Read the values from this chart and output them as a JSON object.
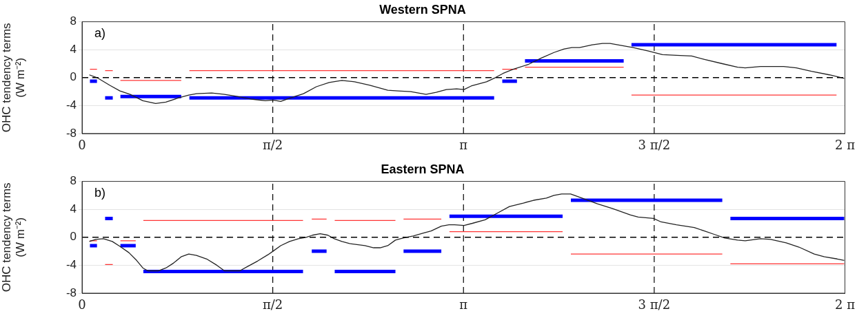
{
  "chart_data": [
    {
      "type": "line",
      "title": "Western SPNA",
      "ylabel": "OHC tendency terms (W m⁻²)",
      "annotations": [
        "a)"
      ],
      "xlim": [
        0,
        6.2832
      ],
      "xticks": [
        0,
        {
          "value": 1.5708,
          "label": "π/2"
        },
        {
          "value": 3.1416,
          "label": "π"
        },
        {
          "value": 4.7124,
          "label": "3 π/2"
        },
        {
          "value": 6.2832,
          "label": "2 π"
        }
      ],
      "ylim": [
        -8,
        8
      ],
      "yticks": [
        -8,
        -4,
        0,
        4,
        8
      ],
      "grid": "y",
      "legend": false,
      "marker": "none",
      "ref_lines": [
        {
          "axis": "x",
          "value": 1.5708,
          "color": "#000000",
          "line_style": "dashed"
        },
        {
          "axis": "x",
          "value": 3.1416,
          "color": "#000000",
          "line_style": "dashed"
        },
        {
          "axis": "x",
          "value": 4.7124,
          "color": "#000000",
          "line_style": "dashed"
        },
        {
          "axis": "y",
          "value": 0,
          "color": "#000000",
          "line_style": "dashed"
        }
      ],
      "series": [
        {
          "type": "line",
          "color": "#222222",
          "x": [
            0.06,
            0.123,
            0.229,
            0.312,
            0.396,
            0.501,
            0.606,
            0.69,
            0.796,
            0.88,
            0.943,
            1.068,
            1.173,
            1.278,
            1.405,
            1.51,
            1.573,
            1.636,
            1.719,
            1.824,
            1.93,
            2.035,
            2.14,
            2.245,
            2.37,
            2.518,
            2.602,
            2.707,
            2.833,
            2.917,
            3.001,
            3.085,
            3.146,
            3.205,
            3.331,
            3.404,
            3.467,
            3.551,
            3.677,
            3.782,
            3.887,
            3.971,
            4.034,
            4.097,
            4.202,
            4.286,
            4.349,
            4.412,
            4.539,
            4.664,
            4.78,
            4.895,
            5.021,
            5.127,
            5.273,
            5.399,
            5.462,
            5.588,
            5.673,
            5.778,
            5.883,
            6.008,
            6.155,
            6.277
          ],
          "values": [
            0.4,
            0.0,
            -1.1,
            -1.9,
            -2.4,
            -3.3,
            -3.7,
            -3.5,
            -2.9,
            -2.5,
            -2.3,
            -2.2,
            -2.4,
            -2.7,
            -3.1,
            -3.3,
            -3.2,
            -3.4,
            -2.9,
            -2.3,
            -1.3,
            -0.7,
            -0.4,
            -0.6,
            -1.1,
            -1.8,
            -1.9,
            -2.0,
            -2.4,
            -2.1,
            -1.7,
            -1.6,
            -1.7,
            -1.2,
            -0.6,
            0.0,
            0.6,
            1.2,
            1.9,
            2.8,
            3.6,
            4.1,
            4.3,
            4.3,
            4.7,
            4.9,
            4.9,
            4.7,
            4.3,
            3.8,
            3.3,
            3.2,
            3.1,
            2.6,
            2.0,
            1.5,
            1.4,
            1.6,
            1.6,
            1.6,
            1.4,
            0.9,
            0.4,
            -0.1
          ]
        },
        {
          "type": "line",
          "color": "#ff3333",
          "x": [
            0.065,
            0.123
          ],
          "values": [
            1.2,
            1.2
          ]
        },
        {
          "type": "line",
          "color": "#ff3333",
          "x": [
            0.19,
            0.253
          ],
          "values": [
            1.0,
            1.0
          ]
        },
        {
          "type": "line",
          "color": "#ff3333",
          "x": [
            0.316,
            0.817
          ],
          "values": [
            -0.4,
            -0.4
          ]
        },
        {
          "type": "line",
          "color": "#ff3333",
          "x": [
            0.884,
            3.394
          ],
          "values": [
            1.0,
            1.0
          ]
        },
        {
          "type": "line",
          "color": "#ff3333",
          "x": [
            3.461,
            3.582
          ],
          "values": [
            1.2,
            1.2
          ]
        },
        {
          "type": "line",
          "color": "#ff3333",
          "x": [
            3.648,
            4.461
          ],
          "values": [
            1.5,
            1.5
          ]
        },
        {
          "type": "line",
          "color": "#ff3333",
          "x": [
            4.525,
            6.214
          ],
          "values": [
            -2.5,
            -2.5
          ]
        },
        {
          "type": "line",
          "color": "#0000ff",
          "x": [
            0.065,
            0.123
          ],
          "values": [
            -0.5,
            -0.5
          ]
        },
        {
          "type": "line",
          "color": "#0000ff",
          "x": [
            0.19,
            0.253
          ],
          "values": [
            -2.9,
            -2.9
          ]
        },
        {
          "type": "line",
          "color": "#0000ff",
          "x": [
            0.316,
            0.817
          ],
          "values": [
            -2.7,
            -2.7
          ]
        },
        {
          "type": "line",
          "color": "#0000ff",
          "x": [
            0.884,
            3.394
          ],
          "values": [
            -2.9,
            -2.9
          ]
        },
        {
          "type": "line",
          "color": "#0000ff",
          "x": [
            3.461,
            3.582
          ],
          "values": [
            -0.5,
            -0.5
          ]
        },
        {
          "type": "line",
          "color": "#0000ff",
          "x": [
            3.648,
            4.461
          ],
          "values": [
            2.4,
            2.4
          ]
        },
        {
          "type": "line",
          "color": "#0000ff",
          "x": [
            4.525,
            6.214
          ],
          "values": [
            4.7,
            4.7
          ]
        }
      ]
    },
    {
      "type": "line",
      "title": "Eastern SPNA",
      "ylabel": "OHC tendency terms (W m⁻²)",
      "annotations": [
        "b)"
      ],
      "xlim": [
        0,
        6.2832
      ],
      "xticks": [
        0,
        {
          "value": 1.5708,
          "label": "π/2"
        },
        {
          "value": 3.1416,
          "label": "π"
        },
        {
          "value": 4.7124,
          "label": "3 π/2"
        },
        {
          "value": 6.2832,
          "label": "2 π"
        }
      ],
      "ylim": [
        -8,
        8
      ],
      "yticks": [
        -8,
        -4,
        0,
        4,
        8
      ],
      "grid": "y",
      "legend": false,
      "marker": "none",
      "ref_lines": [
        {
          "axis": "x",
          "value": 1.5708,
          "color": "#000000",
          "line_style": "dashed"
        },
        {
          "axis": "x",
          "value": 3.1416,
          "color": "#000000",
          "line_style": "dashed"
        },
        {
          "axis": "x",
          "value": 4.7124,
          "color": "#000000",
          "line_style": "dashed"
        },
        {
          "axis": "y",
          "value": 0,
          "color": "#000000",
          "line_style": "dashed"
        }
      ],
      "series": [
        {
          "type": "line",
          "color": "#222222",
          "x": [
            0.06,
            0.113,
            0.176,
            0.249,
            0.312,
            0.386,
            0.449,
            0.501,
            0.543,
            0.627,
            0.69,
            0.753,
            0.816,
            0.879,
            0.942,
            1.026,
            1.11,
            1.173,
            1.299,
            1.362,
            1.446,
            1.531,
            1.572,
            1.636,
            1.709,
            1.783,
            1.846,
            1.898,
            1.961,
            2.024,
            2.077,
            2.14,
            2.203,
            2.329,
            2.402,
            2.455,
            2.518,
            2.581,
            2.644,
            2.728,
            2.812,
            2.875,
            2.959,
            3.022,
            3.068,
            3.146,
            3.215,
            3.32,
            3.425,
            3.52,
            3.635,
            3.719,
            3.824,
            3.887,
            3.95,
            4.024,
            4.118,
            4.244,
            4.37,
            4.517,
            4.58,
            4.706,
            4.769,
            4.895,
            5.042,
            5.126,
            5.21,
            5.294,
            5.399,
            5.462,
            5.588,
            5.672,
            5.799,
            5.904,
            6.03,
            6.114,
            6.219,
            6.277
          ],
          "values": [
            -0.6,
            -0.3,
            -0.2,
            -0.6,
            -1.3,
            -2.2,
            -3.3,
            -4.4,
            -4.8,
            -4.8,
            -4.4,
            -3.7,
            -2.8,
            -2.4,
            -2.6,
            -3.1,
            -4.0,
            -4.8,
            -4.8,
            -4.2,
            -3.4,
            -2.5,
            -2.0,
            -1.2,
            -0.6,
            -0.2,
            0,
            0.3,
            0.5,
            0.3,
            -0.2,
            -0.6,
            -0.9,
            -1.2,
            -1.5,
            -1.5,
            -1.2,
            -0.4,
            -0.1,
            0.2,
            0.6,
            0.9,
            1.6,
            1.8,
            1.8,
            1.7,
            2.0,
            2.5,
            3.5,
            4.4,
            4.9,
            5.3,
            5.6,
            6.0,
            6.2,
            6.2,
            5.6,
            4.8,
            4.1,
            3.2,
            2.9,
            2.7,
            2.2,
            1.8,
            1.4,
            0.9,
            0.4,
            -0.1,
            -0.4,
            -0.5,
            -0.2,
            -0.3,
            -0.8,
            -1.4,
            -2.4,
            -2.8,
            -3.1,
            -3.3
          ]
        },
        {
          "type": "line",
          "color": "#ff3333",
          "x": [
            0.065,
            0.123
          ],
          "values": [
            -0.5,
            -0.5
          ]
        },
        {
          "type": "line",
          "color": "#ff3333",
          "x": [
            0.19,
            0.253
          ],
          "values": [
            -3.9,
            -3.9
          ]
        },
        {
          "type": "line",
          "color": "#ff3333",
          "x": [
            0.316,
            0.442
          ],
          "values": [
            -0.5,
            -0.5
          ]
        },
        {
          "type": "line",
          "color": "#ff3333",
          "x": [
            0.505,
            1.82
          ],
          "values": [
            2.4,
            2.4
          ]
        },
        {
          "type": "line",
          "color": "#ff3333",
          "x": [
            1.892,
            2.014
          ],
          "values": [
            2.6,
            2.6
          ]
        },
        {
          "type": "line",
          "color": "#ff3333",
          "x": [
            2.081,
            2.581
          ],
          "values": [
            2.4,
            2.4
          ]
        },
        {
          "type": "line",
          "color": "#ff3333",
          "x": [
            2.648,
            2.959
          ],
          "values": [
            2.6,
            2.6
          ]
        },
        {
          "type": "line",
          "color": "#ff3333",
          "x": [
            3.026,
            3.958
          ],
          "values": [
            0.8,
            0.8
          ]
        },
        {
          "type": "line",
          "color": "#ff3333",
          "x": [
            4.026,
            5.273
          ],
          "values": [
            -2.4,
            -2.4
          ]
        },
        {
          "type": "line",
          "color": "#ff3333",
          "x": [
            5.34,
            6.277
          ],
          "values": [
            -3.8,
            -3.8
          ]
        },
        {
          "type": "line",
          "color": "#0000ff",
          "x": [
            0.065,
            0.123
          ],
          "values": [
            -1.2,
            -1.2
          ]
        },
        {
          "type": "line",
          "color": "#0000ff",
          "x": [
            0.19,
            0.253
          ],
          "values": [
            2.7,
            2.7
          ]
        },
        {
          "type": "line",
          "color": "#0000ff",
          "x": [
            0.316,
            0.442
          ],
          "values": [
            -1.2,
            -1.2
          ]
        },
        {
          "type": "line",
          "color": "#0000ff",
          "x": [
            0.505,
            1.82
          ],
          "values": [
            -4.9,
            -4.9
          ]
        },
        {
          "type": "line",
          "color": "#0000ff",
          "x": [
            1.892,
            2.014
          ],
          "values": [
            -2.0,
            -2.0
          ]
        },
        {
          "type": "line",
          "color": "#0000ff",
          "x": [
            2.081,
            2.581
          ],
          "values": [
            -4.9,
            -4.9
          ]
        },
        {
          "type": "line",
          "color": "#0000ff",
          "x": [
            2.648,
            2.959
          ],
          "values": [
            -2.0,
            -2.0
          ]
        },
        {
          "type": "line",
          "color": "#0000ff",
          "x": [
            3.026,
            3.958
          ],
          "values": [
            3.0,
            3.0
          ]
        },
        {
          "type": "line",
          "color": "#0000ff",
          "x": [
            4.026,
            5.273
          ],
          "values": [
            5.3,
            5.3
          ]
        },
        {
          "type": "line",
          "color": "#0000ff",
          "x": [
            5.34,
            6.277
          ],
          "values": [
            2.7,
            2.7
          ]
        }
      ]
    }
  ]
}
